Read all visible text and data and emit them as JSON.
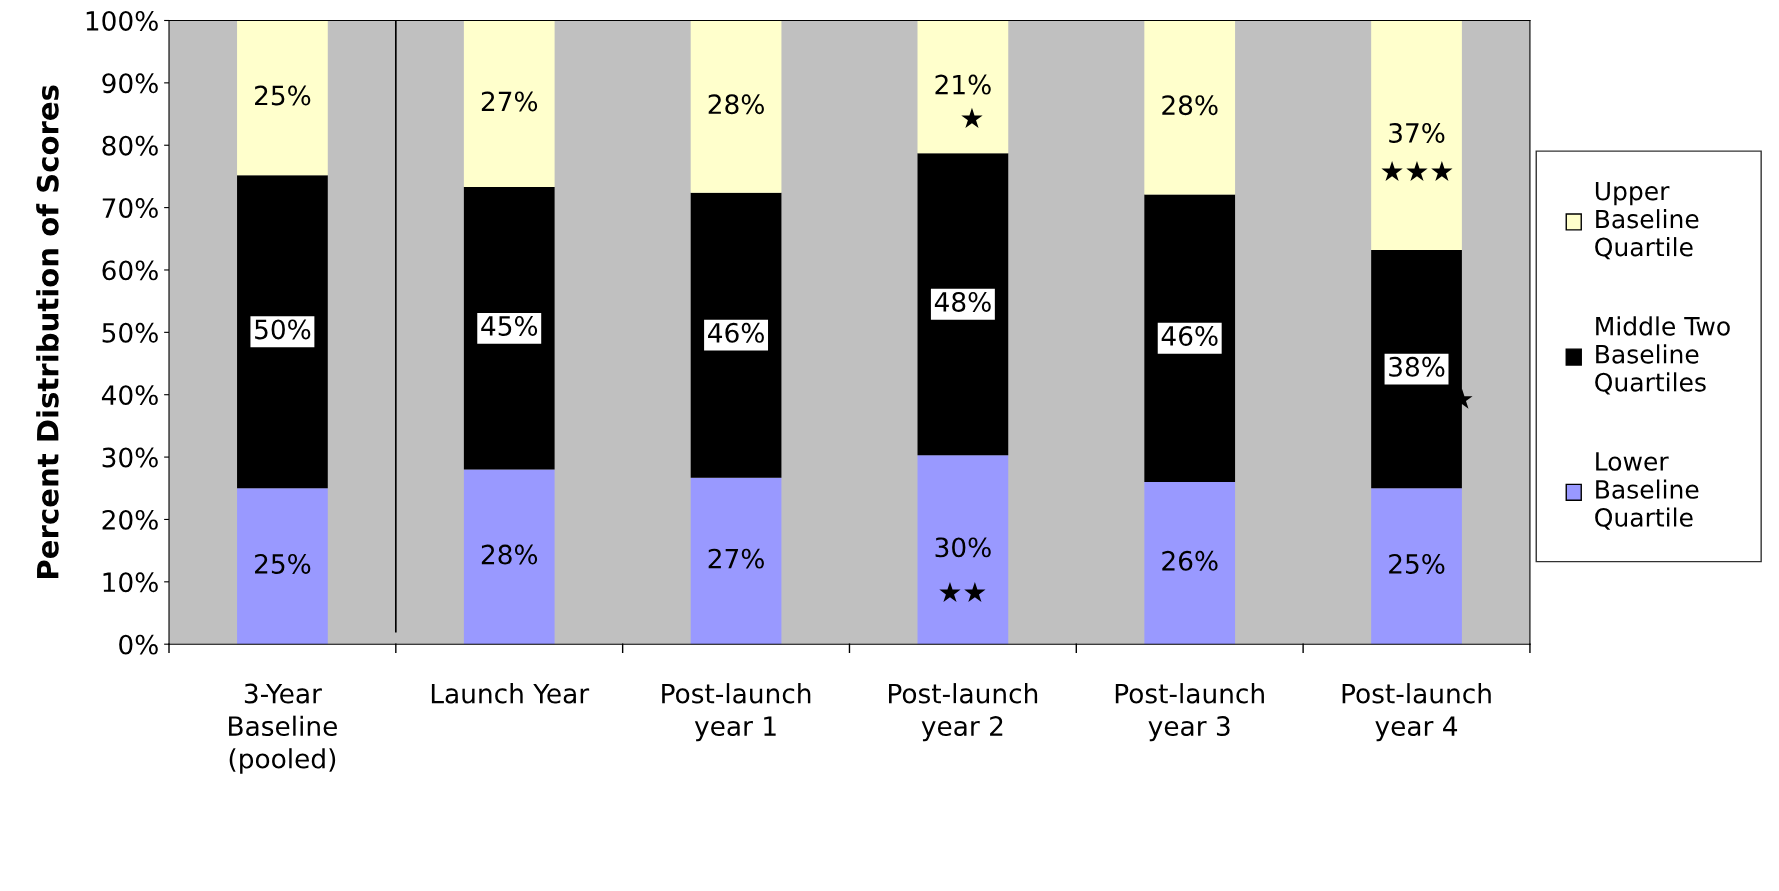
{
  "chart_data": {
    "type": "bar",
    "stacked": true,
    "ylabel": "Percent Distribution of Scores",
    "categories": [
      "3-Year\nBaseline\n(pooled)",
      "Launch Year",
      "Post-launch\nyear 1",
      "Post-launch\nyear 2",
      "Post-launch\nyear 3",
      "Post-launch\nyear 4"
    ],
    "series": [
      {
        "name": "Lower\nBaseline\nQuartile",
        "color": "#9999ff",
        "values": [
          25,
          28,
          26.7,
          30.3,
          26,
          25
        ],
        "value_labels": [
          "25%",
          "28%",
          "27%",
          "30%",
          "26%",
          "25%"
        ]
      },
      {
        "name": "Middle Two\nBaseline\nQuartiles",
        "color": "#000000",
        "values": [
          50.2,
          45.3,
          45.7,
          48.4,
          46.1,
          38.2
        ],
        "value_labels": [
          "50%",
          "45%",
          "46%",
          "48%",
          "46%",
          "38%"
        ]
      },
      {
        "name": "Upper\nBaseline\nQuartile",
        "color": "#ffffcc",
        "values": [
          24.8,
          26.7,
          27.6,
          21.3,
          27.9,
          36.8
        ],
        "value_labels": [
          "25%",
          "27%",
          "28%",
          "21%",
          "28%",
          "37%"
        ]
      }
    ],
    "ylim": [
      0,
      100
    ],
    "yticks": [
      {
        "value": 0,
        "label": "0%"
      },
      {
        "value": 10,
        "label": "10%"
      },
      {
        "value": 20,
        "label": "20%"
      },
      {
        "value": 30,
        "label": "30%"
      },
      {
        "value": 40,
        "label": "40%"
      },
      {
        "value": 50,
        "label": "50%"
      },
      {
        "value": 60,
        "label": "60%"
      },
      {
        "value": 70,
        "label": "70%"
      },
      {
        "value": 80,
        "label": "80%"
      },
      {
        "value": 90,
        "label": "90%"
      },
      {
        "value": 100,
        "label": "100%"
      }
    ],
    "annotations": [
      "★",
      "★★",
      "★★★",
      "★"
    ],
    "legend": "right",
    "grid": false
  }
}
